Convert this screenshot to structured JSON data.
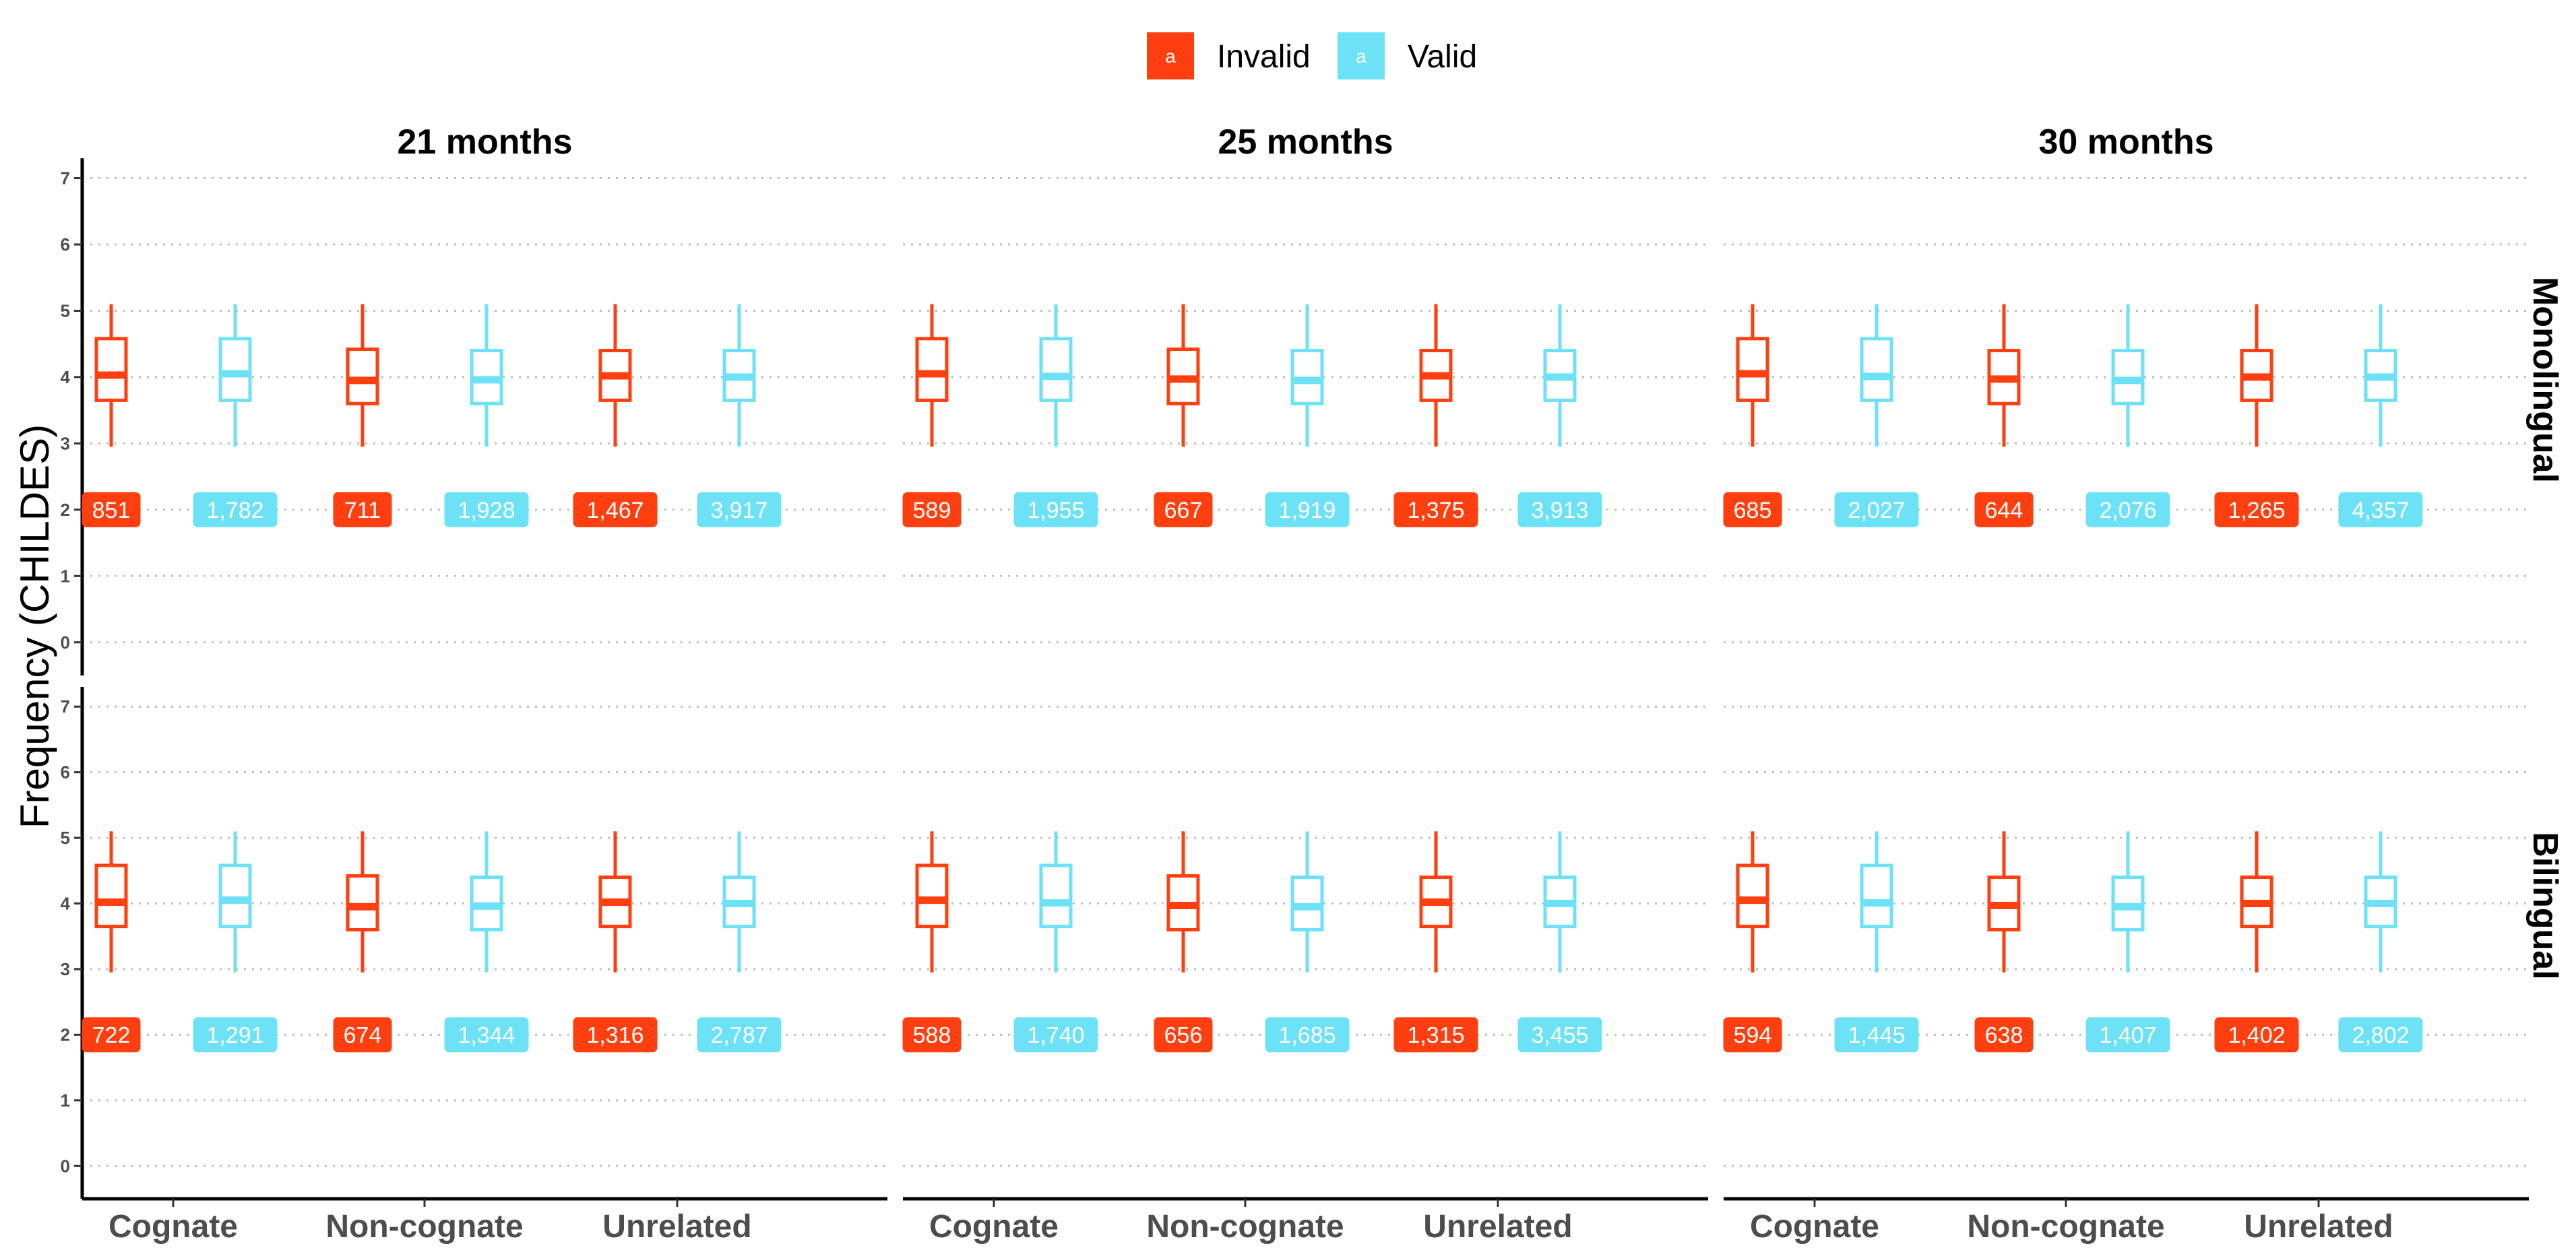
{
  "chart_data": {
    "type": "boxplot",
    "ylabel": "Frequency (CHILDES)",
    "xlabel": "",
    "ylim": [
      -0.5,
      7.3
    ],
    "y_ticks": [
      0,
      1,
      2,
      3,
      4,
      5,
      6,
      7
    ],
    "grid": "horizontal dotted",
    "legend": {
      "position": "top",
      "key_glyph": "a",
      "entries": [
        {
          "name": "Invalid",
          "color": "#ff3f0f"
        },
        {
          "name": "Valid",
          "color": "#6de2f7"
        }
      ]
    },
    "facet_cols": [
      "21 months",
      "25 months",
      "30 months"
    ],
    "facet_rows": [
      "Monolingual",
      "Bilingual"
    ],
    "categories": [
      "Cognate",
      "Non-cognate",
      "Unrelated"
    ],
    "label_y": 2,
    "panels": [
      {
        "col": "21 months",
        "row": "Monolingual",
        "boxes": [
          {
            "category": "Cognate",
            "group": "Invalid",
            "min": 2.95,
            "q1": 3.65,
            "median": 4.03,
            "q3": 4.58,
            "max": 5.1,
            "n": "851"
          },
          {
            "category": "Cognate",
            "group": "Valid",
            "min": 2.95,
            "q1": 3.65,
            "median": 4.05,
            "q3": 4.58,
            "max": 5.1,
            "n": "1,782"
          },
          {
            "category": "Non-cognate",
            "group": "Invalid",
            "min": 2.95,
            "q1": 3.6,
            "median": 3.95,
            "q3": 4.42,
            "max": 5.1,
            "n": "711"
          },
          {
            "category": "Non-cognate",
            "group": "Valid",
            "min": 2.95,
            "q1": 3.6,
            "median": 3.96,
            "q3": 4.4,
            "max": 5.1,
            "n": "1,928"
          },
          {
            "category": "Unrelated",
            "group": "Invalid",
            "min": 2.95,
            "q1": 3.65,
            "median": 4.02,
            "q3": 4.4,
            "max": 5.1,
            "n": "1,467"
          },
          {
            "category": "Unrelated",
            "group": "Valid",
            "min": 2.95,
            "q1": 3.65,
            "median": 4.0,
            "q3": 4.4,
            "max": 5.1,
            "n": "3,917"
          }
        ]
      },
      {
        "col": "25 months",
        "row": "Monolingual",
        "boxes": [
          {
            "category": "Cognate",
            "group": "Invalid",
            "min": 2.95,
            "q1": 3.65,
            "median": 4.05,
            "q3": 4.58,
            "max": 5.1,
            "n": "589"
          },
          {
            "category": "Cognate",
            "group": "Valid",
            "min": 2.95,
            "q1": 3.65,
            "median": 4.01,
            "q3": 4.58,
            "max": 5.1,
            "n": "1,955"
          },
          {
            "category": "Non-cognate",
            "group": "Invalid",
            "min": 2.95,
            "q1": 3.6,
            "median": 3.97,
            "q3": 4.42,
            "max": 5.1,
            "n": "667"
          },
          {
            "category": "Non-cognate",
            "group": "Valid",
            "min": 2.95,
            "q1": 3.6,
            "median": 3.95,
            "q3": 4.4,
            "max": 5.1,
            "n": "1,919"
          },
          {
            "category": "Unrelated",
            "group": "Invalid",
            "min": 2.95,
            "q1": 3.65,
            "median": 4.02,
            "q3": 4.4,
            "max": 5.1,
            "n": "1,375"
          },
          {
            "category": "Unrelated",
            "group": "Valid",
            "min": 2.95,
            "q1": 3.65,
            "median": 4.0,
            "q3": 4.4,
            "max": 5.1,
            "n": "3,913"
          }
        ]
      },
      {
        "col": "30 months",
        "row": "Monolingual",
        "boxes": [
          {
            "category": "Cognate",
            "group": "Invalid",
            "min": 2.95,
            "q1": 3.65,
            "median": 4.05,
            "q3": 4.58,
            "max": 5.1,
            "n": "685"
          },
          {
            "category": "Cognate",
            "group": "Valid",
            "min": 2.95,
            "q1": 3.65,
            "median": 4.01,
            "q3": 4.58,
            "max": 5.1,
            "n": "2,027"
          },
          {
            "category": "Non-cognate",
            "group": "Invalid",
            "min": 2.95,
            "q1": 3.6,
            "median": 3.97,
            "q3": 4.4,
            "max": 5.1,
            "n": "644"
          },
          {
            "category": "Non-cognate",
            "group": "Valid",
            "min": 2.95,
            "q1": 3.6,
            "median": 3.95,
            "q3": 4.4,
            "max": 5.1,
            "n": "2,076"
          },
          {
            "category": "Unrelated",
            "group": "Invalid",
            "min": 2.95,
            "q1": 3.65,
            "median": 4.0,
            "q3": 4.4,
            "max": 5.1,
            "n": "1,265"
          },
          {
            "category": "Unrelated",
            "group": "Valid",
            "min": 2.95,
            "q1": 3.65,
            "median": 4.0,
            "q3": 4.4,
            "max": 5.1,
            "n": "4,357"
          }
        ]
      },
      {
        "col": "21 months",
        "row": "Bilingual",
        "boxes": [
          {
            "category": "Cognate",
            "group": "Invalid",
            "min": 2.95,
            "q1": 3.65,
            "median": 4.02,
            "q3": 4.58,
            "max": 5.1,
            "n": "722"
          },
          {
            "category": "Cognate",
            "group": "Valid",
            "min": 2.95,
            "q1": 3.65,
            "median": 4.05,
            "q3": 4.58,
            "max": 5.1,
            "n": "1,291"
          },
          {
            "category": "Non-cognate",
            "group": "Invalid",
            "min": 2.95,
            "q1": 3.6,
            "median": 3.95,
            "q3": 4.42,
            "max": 5.1,
            "n": "674"
          },
          {
            "category": "Non-cognate",
            "group": "Valid",
            "min": 2.95,
            "q1": 3.6,
            "median": 3.96,
            "q3": 4.4,
            "max": 5.1,
            "n": "1,344"
          },
          {
            "category": "Unrelated",
            "group": "Invalid",
            "min": 2.95,
            "q1": 3.65,
            "median": 4.02,
            "q3": 4.4,
            "max": 5.1,
            "n": "1,316"
          },
          {
            "category": "Unrelated",
            "group": "Valid",
            "min": 2.95,
            "q1": 3.65,
            "median": 4.0,
            "q3": 4.4,
            "max": 5.1,
            "n": "2,787"
          }
        ]
      },
      {
        "col": "25 months",
        "row": "Bilingual",
        "boxes": [
          {
            "category": "Cognate",
            "group": "Invalid",
            "min": 2.95,
            "q1": 3.65,
            "median": 4.05,
            "q3": 4.58,
            "max": 5.1,
            "n": "588"
          },
          {
            "category": "Cognate",
            "group": "Valid",
            "min": 2.95,
            "q1": 3.65,
            "median": 4.01,
            "q3": 4.58,
            "max": 5.1,
            "n": "1,740"
          },
          {
            "category": "Non-cognate",
            "group": "Invalid",
            "min": 2.95,
            "q1": 3.6,
            "median": 3.97,
            "q3": 4.42,
            "max": 5.1,
            "n": "656"
          },
          {
            "category": "Non-cognate",
            "group": "Valid",
            "min": 2.95,
            "q1": 3.6,
            "median": 3.95,
            "q3": 4.4,
            "max": 5.1,
            "n": "1,685"
          },
          {
            "category": "Unrelated",
            "group": "Invalid",
            "min": 2.95,
            "q1": 3.65,
            "median": 4.02,
            "q3": 4.4,
            "max": 5.1,
            "n": "1,315"
          },
          {
            "category": "Unrelated",
            "group": "Valid",
            "min": 2.95,
            "q1": 3.65,
            "median": 4.0,
            "q3": 4.4,
            "max": 5.1,
            "n": "3,455"
          }
        ]
      },
      {
        "col": "30 months",
        "row": "Bilingual",
        "boxes": [
          {
            "category": "Cognate",
            "group": "Invalid",
            "min": 2.95,
            "q1": 3.65,
            "median": 4.05,
            "q3": 4.58,
            "max": 5.1,
            "n": "594"
          },
          {
            "category": "Cognate",
            "group": "Valid",
            "min": 2.95,
            "q1": 3.65,
            "median": 4.01,
            "q3": 4.58,
            "max": 5.1,
            "n": "1,445"
          },
          {
            "category": "Non-cognate",
            "group": "Invalid",
            "min": 2.95,
            "q1": 3.6,
            "median": 3.97,
            "q3": 4.4,
            "max": 5.1,
            "n": "638"
          },
          {
            "category": "Non-cognate",
            "group": "Valid",
            "min": 2.95,
            "q1": 3.6,
            "median": 3.95,
            "q3": 4.4,
            "max": 5.1,
            "n": "1,407"
          },
          {
            "category": "Unrelated",
            "group": "Invalid",
            "min": 2.95,
            "q1": 3.65,
            "median": 4.0,
            "q3": 4.4,
            "max": 5.1,
            "n": "1,402"
          },
          {
            "category": "Unrelated",
            "group": "Valid",
            "min": 2.95,
            "q1": 3.65,
            "median": 4.0,
            "q3": 4.4,
            "max": 5.1,
            "n": "2,802"
          }
        ]
      }
    ]
  }
}
